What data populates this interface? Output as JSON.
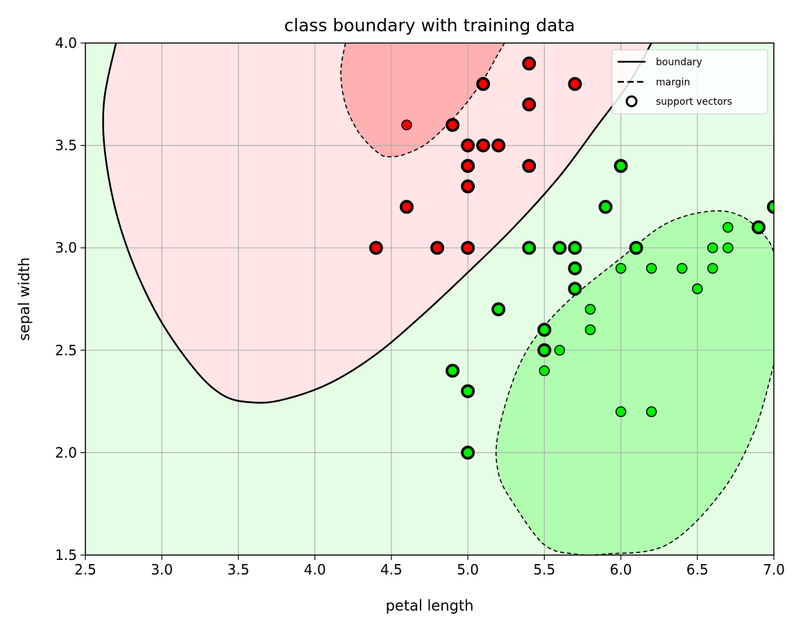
{
  "chart_data": {
    "type": "scatter",
    "title": "class boundary with training data",
    "xlabel": "petal length",
    "ylabel": "sepal width",
    "xlim": [
      2.5,
      7.0
    ],
    "ylim": [
      1.5,
      4.0
    ],
    "xticks": [
      "2.5",
      "3.0",
      "3.5",
      "4.0",
      "4.5",
      "5.0",
      "5.5",
      "6.0",
      "6.5",
      "7.0"
    ],
    "yticks": [
      "1.5",
      "2.0",
      "2.5",
      "3.0",
      "3.5",
      "4.0"
    ],
    "grid": true,
    "legend_position": "upper right",
    "legend": [
      {
        "label": "boundary",
        "style": "solid"
      },
      {
        "label": "margin",
        "style": "dashed"
      },
      {
        "label": "support vectors",
        "style": "circle"
      }
    ],
    "colors": {
      "background": "#e5fde5",
      "class_a_region": "#ffe5e5",
      "class_a_margin": "#ffb0b0",
      "class_b_margin": "#b0fdb0",
      "class_a": "#ff0000",
      "class_b": "#00ee00",
      "grid": "#b0b0b0"
    },
    "series": [
      {
        "color": "#ff0000",
        "points": [
          [
            4.6,
            3.6,
            false
          ],
          [
            4.9,
            3.6,
            true
          ],
          [
            5.1,
            3.8,
            true
          ],
          [
            5.4,
            3.9,
            true
          ],
          [
            5.7,
            3.8,
            true
          ],
          [
            5.4,
            3.7,
            true
          ],
          [
            5.0,
            3.5,
            true
          ],
          [
            5.1,
            3.5,
            true
          ],
          [
            5.2,
            3.5,
            true
          ],
          [
            5.0,
            3.4,
            true
          ],
          [
            5.4,
            3.4,
            true
          ],
          [
            5.0,
            3.3,
            true
          ],
          [
            4.6,
            3.2,
            true
          ],
          [
            4.4,
            3.0,
            true
          ],
          [
            4.8,
            3.0,
            true
          ],
          [
            5.0,
            3.0,
            true
          ]
        ]
      },
      {
        "color": "#00ee00",
        "points": [
          [
            6.0,
            3.4,
            true
          ],
          [
            5.9,
            3.2,
            true
          ],
          [
            7.0,
            3.2,
            true
          ],
          [
            6.9,
            3.1,
            true
          ],
          [
            6.7,
            3.1,
            false
          ],
          [
            5.4,
            3.0,
            true
          ],
          [
            5.6,
            3.0,
            true
          ],
          [
            5.7,
            3.0,
            true
          ],
          [
            6.1,
            3.0,
            true
          ],
          [
            6.6,
            3.0,
            false
          ],
          [
            6.7,
            3.0,
            false
          ],
          [
            5.7,
            2.9,
            true
          ],
          [
            6.0,
            2.9,
            false
          ],
          [
            6.2,
            2.9,
            false
          ],
          [
            6.4,
            2.9,
            false
          ],
          [
            6.6,
            2.9,
            false
          ],
          [
            5.7,
            2.8,
            true
          ],
          [
            6.5,
            2.8,
            false
          ],
          [
            5.8,
            2.7,
            false
          ],
          [
            5.2,
            2.7,
            true
          ],
          [
            5.8,
            2.6,
            false
          ],
          [
            5.5,
            2.6,
            true
          ],
          [
            5.5,
            2.5,
            true
          ],
          [
            5.6,
            2.5,
            false
          ],
          [
            4.9,
            2.4,
            true
          ],
          [
            5.5,
            2.4,
            false
          ],
          [
            5.0,
            2.3,
            true
          ],
          [
            6.0,
            2.2,
            false
          ],
          [
            6.2,
            2.2,
            false
          ],
          [
            5.0,
            2.0,
            true
          ]
        ]
      }
    ],
    "regions": {
      "boundary": [
        [
          2.7,
          4.0
        ],
        [
          2.62,
          3.7
        ],
        [
          2.64,
          3.4
        ],
        [
          2.75,
          3.05
        ],
        [
          2.95,
          2.7
        ],
        [
          3.2,
          2.42
        ],
        [
          3.4,
          2.28
        ],
        [
          3.6,
          2.245
        ],
        [
          3.8,
          2.26
        ],
        [
          4.1,
          2.34
        ],
        [
          4.4,
          2.48
        ],
        [
          4.7,
          2.67
        ],
        [
          5.0,
          2.88
        ],
        [
          5.3,
          3.1
        ],
        [
          5.6,
          3.35
        ],
        [
          5.85,
          3.6
        ],
        [
          6.05,
          3.8
        ],
        [
          6.2,
          4.0
        ]
      ],
      "margin_a": [
        [
          4.2,
          4.0
        ],
        [
          4.17,
          3.86
        ],
        [
          4.2,
          3.7
        ],
        [
          4.29,
          3.56
        ],
        [
          4.42,
          3.46
        ],
        [
          4.5,
          3.445
        ],
        [
          4.6,
          3.46
        ],
        [
          4.75,
          3.52
        ],
        [
          4.95,
          3.67
        ],
        [
          5.1,
          3.82
        ],
        [
          5.2,
          3.95
        ],
        [
          5.24,
          4.0
        ]
      ],
      "margin_b": [
        [
          7.0,
          2.43
        ],
        [
          6.87,
          2.1
        ],
        [
          6.65,
          1.8
        ],
        [
          6.3,
          1.55
        ],
        [
          5.9,
          1.505
        ],
        [
          5.7,
          1.505
        ],
        [
          5.5,
          1.55
        ],
        [
          5.3,
          1.75
        ],
        [
          5.2,
          1.9
        ],
        [
          5.2,
          2.1
        ],
        [
          5.35,
          2.45
        ],
        [
          5.6,
          2.7
        ],
        [
          6.0,
          2.95
        ],
        [
          6.3,
          3.12
        ],
        [
          6.6,
          3.18
        ],
        [
          6.8,
          3.15
        ],
        [
          6.95,
          3.05
        ],
        [
          7.0,
          2.98
        ]
      ]
    }
  }
}
